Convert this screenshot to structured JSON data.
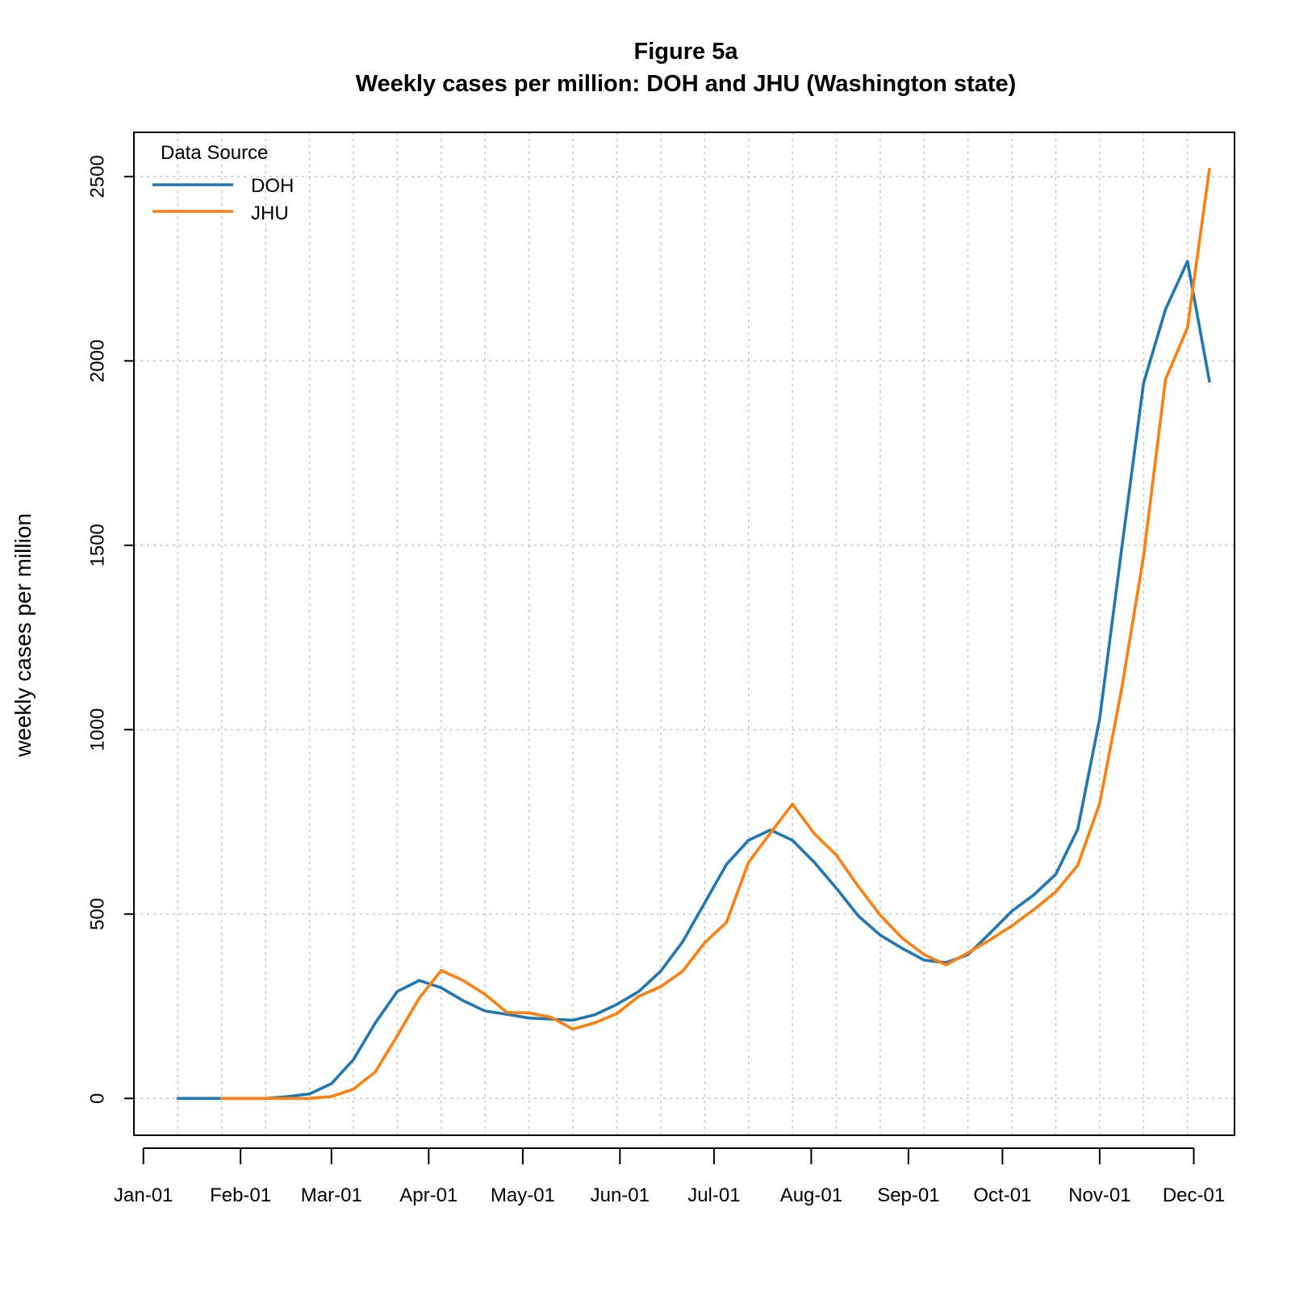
{
  "chart_data": {
    "type": "line",
    "title": "Figure 5a",
    "subtitle": "Weekly cases per million: DOH and JHU (Washington state)",
    "xlabel": "",
    "ylabel": "weekly cases per million",
    "x_type": "date",
    "year": 2020,
    "xlim": [
      "2019-12-29",
      "2020-12-14"
    ],
    "ylim": [
      -100,
      2620
    ],
    "x_ticks": [
      {
        "date": "2020-01-01",
        "label": "Jan-01"
      },
      {
        "date": "2020-02-01",
        "label": "Feb-01"
      },
      {
        "date": "2020-03-01",
        "label": "Mar-01"
      },
      {
        "date": "2020-04-01",
        "label": "Apr-01"
      },
      {
        "date": "2020-05-01",
        "label": "May-01"
      },
      {
        "date": "2020-06-01",
        "label": "Jun-01"
      },
      {
        "date": "2020-07-01",
        "label": "Jul-01"
      },
      {
        "date": "2020-08-01",
        "label": "Aug-01"
      },
      {
        "date": "2020-09-01",
        "label": "Sep-01"
      },
      {
        "date": "2020-10-01",
        "label": "Oct-01"
      },
      {
        "date": "2020-11-01",
        "label": "Nov-01"
      },
      {
        "date": "2020-12-01",
        "label": "Dec-01"
      }
    ],
    "y_ticks": [
      0,
      500,
      1000,
      1500,
      2000,
      2500
    ],
    "grid": true,
    "x_grid_dates": [
      "2020-01-12",
      "2020-01-26",
      "2020-02-09",
      "2020-02-23",
      "2020-03-08",
      "2020-03-22",
      "2020-04-05",
      "2020-04-19",
      "2020-05-03",
      "2020-05-17",
      "2020-05-31",
      "2020-06-14",
      "2020-06-28",
      "2020-07-12",
      "2020-07-26",
      "2020-08-09",
      "2020-08-23",
      "2020-09-06",
      "2020-09-20",
      "2020-10-04",
      "2020-10-18",
      "2020-11-01",
      "2020-11-15",
      "2020-11-29"
    ],
    "legend": {
      "title": "Data Source",
      "position": "top-left"
    },
    "series": [
      {
        "name": "DOH",
        "color": "#1f77b4",
        "points": [
          [
            "2020-01-12",
            0
          ],
          [
            "2020-01-19",
            0
          ],
          [
            "2020-01-26",
            0
          ],
          [
            "2020-02-02",
            0
          ],
          [
            "2020-02-09",
            0
          ],
          [
            "2020-02-16",
            5
          ],
          [
            "2020-02-23",
            12
          ],
          [
            "2020-03-01",
            40
          ],
          [
            "2020-03-08",
            105
          ],
          [
            "2020-03-15",
            205
          ],
          [
            "2020-03-22",
            290
          ],
          [
            "2020-03-29",
            320
          ],
          [
            "2020-04-05",
            300
          ],
          [
            "2020-04-12",
            265
          ],
          [
            "2020-04-19",
            237
          ],
          [
            "2020-04-26",
            228
          ],
          [
            "2020-05-03",
            218
          ],
          [
            "2020-05-10",
            215
          ],
          [
            "2020-05-17",
            212
          ],
          [
            "2020-05-24",
            227
          ],
          [
            "2020-05-31",
            255
          ],
          [
            "2020-06-07",
            290
          ],
          [
            "2020-06-14",
            345
          ],
          [
            "2020-06-21",
            425
          ],
          [
            "2020-06-28",
            530
          ],
          [
            "2020-07-05",
            635
          ],
          [
            "2020-07-12",
            700
          ],
          [
            "2020-07-19",
            728
          ],
          [
            "2020-07-26",
            700
          ],
          [
            "2020-08-02",
            640
          ],
          [
            "2020-08-09",
            570
          ],
          [
            "2020-08-16",
            495
          ],
          [
            "2020-08-23",
            443
          ],
          [
            "2020-08-30",
            407
          ],
          [
            "2020-09-06",
            375
          ],
          [
            "2020-09-13",
            368
          ],
          [
            "2020-09-20",
            390
          ],
          [
            "2020-09-27",
            448
          ],
          [
            "2020-10-04",
            508
          ],
          [
            "2020-10-11",
            552
          ],
          [
            "2020-10-18",
            608
          ],
          [
            "2020-10-25",
            730
          ],
          [
            "2020-11-01",
            1030
          ],
          [
            "2020-11-08",
            1490
          ],
          [
            "2020-11-15",
            1940
          ],
          [
            "2020-11-22",
            2140
          ],
          [
            "2020-11-29",
            2270
          ],
          [
            "2020-12-06",
            1945
          ]
        ]
      },
      {
        "name": "JHU",
        "color": "#ff7f0e",
        "points": [
          [
            "2020-01-26",
            0
          ],
          [
            "2020-02-02",
            0
          ],
          [
            "2020-02-09",
            0
          ],
          [
            "2020-02-16",
            0
          ],
          [
            "2020-02-23",
            0
          ],
          [
            "2020-03-01",
            5
          ],
          [
            "2020-03-08",
            25
          ],
          [
            "2020-03-15",
            72
          ],
          [
            "2020-03-22",
            170
          ],
          [
            "2020-03-29",
            272
          ],
          [
            "2020-04-05",
            347
          ],
          [
            "2020-04-12",
            320
          ],
          [
            "2020-04-19",
            282
          ],
          [
            "2020-04-26",
            233
          ],
          [
            "2020-05-03",
            232
          ],
          [
            "2020-05-10",
            220
          ],
          [
            "2020-05-17",
            188
          ],
          [
            "2020-05-24",
            205
          ],
          [
            "2020-05-31",
            230
          ],
          [
            "2020-06-07",
            277
          ],
          [
            "2020-06-14",
            303
          ],
          [
            "2020-06-21",
            345
          ],
          [
            "2020-06-28",
            422
          ],
          [
            "2020-07-05",
            478
          ],
          [
            "2020-07-12",
            640
          ],
          [
            "2020-07-19",
            720
          ],
          [
            "2020-07-26",
            798
          ],
          [
            "2020-08-02",
            718
          ],
          [
            "2020-08-09",
            660
          ],
          [
            "2020-08-16",
            575
          ],
          [
            "2020-08-23",
            497
          ],
          [
            "2020-08-30",
            435
          ],
          [
            "2020-09-06",
            390
          ],
          [
            "2020-09-13",
            362
          ],
          [
            "2020-09-20",
            395
          ],
          [
            "2020-09-27",
            430
          ],
          [
            "2020-10-04",
            468
          ],
          [
            "2020-10-11",
            512
          ],
          [
            "2020-10-18",
            560
          ],
          [
            "2020-10-25",
            632
          ],
          [
            "2020-11-01",
            800
          ],
          [
            "2020-11-08",
            1110
          ],
          [
            "2020-11-15",
            1470
          ],
          [
            "2020-11-22",
            1950
          ],
          [
            "2020-11-29",
            2090
          ],
          [
            "2020-12-06",
            2520
          ]
        ]
      }
    ]
  }
}
